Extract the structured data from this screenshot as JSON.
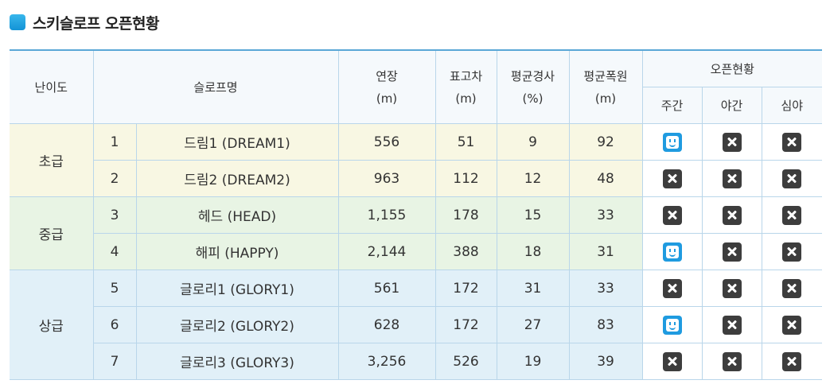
{
  "section_title": "스키슬로프 오픈현황",
  "colors": {
    "accent": "#1393d6",
    "open_icon": "#1f9be0",
    "closed_icon": "#3d3d3d"
  },
  "headers": {
    "difficulty": "난이도",
    "slope_name": "슬로프명",
    "length": "연장",
    "length_unit": "(m)",
    "elevation": "표고차",
    "elevation_unit": "(m)",
    "avg_slope": "평균경사",
    "avg_slope_unit": "(%)",
    "avg_width": "평균폭원",
    "avg_width_unit": "(m)",
    "open_status": "오픈현황",
    "day": "주간",
    "night": "야간",
    "late_night": "심야"
  },
  "groups": [
    {
      "level": "초급",
      "rows": [
        {
          "no": "1",
          "name": "드림1 (DREAM1)",
          "length": "556",
          "elevation": "51",
          "avg_slope": "9",
          "avg_width": "92",
          "day": "open-icon",
          "night": "closed-icon",
          "late_night": "closed-icon"
        },
        {
          "no": "2",
          "name": "드림2 (DREAM2)",
          "length": "963",
          "elevation": "112",
          "avg_slope": "12",
          "avg_width": "48",
          "day": "closed-icon",
          "night": "closed-icon",
          "late_night": "closed-icon"
        }
      ]
    },
    {
      "level": "중급",
      "rows": [
        {
          "no": "3",
          "name": "헤드 (HEAD)",
          "length": "1,155",
          "elevation": "178",
          "avg_slope": "15",
          "avg_width": "33",
          "day": "closed-icon",
          "night": "closed-icon",
          "late_night": "closed-icon"
        },
        {
          "no": "4",
          "name": "해피 (HAPPY)",
          "length": "2,144",
          "elevation": "388",
          "avg_slope": "18",
          "avg_width": "31",
          "day": "open-icon",
          "night": "closed-icon",
          "late_night": "closed-icon"
        }
      ]
    },
    {
      "level": "상급",
      "rows": [
        {
          "no": "5",
          "name": "글로리1 (GLORY1)",
          "length": "561",
          "elevation": "172",
          "avg_slope": "31",
          "avg_width": "33",
          "day": "closed-icon",
          "night": "closed-icon",
          "late_night": "closed-icon"
        },
        {
          "no": "6",
          "name": "글로리2 (GLORY2)",
          "length": "628",
          "elevation": "172",
          "avg_slope": "27",
          "avg_width": "83",
          "day": "open-icon",
          "night": "closed-icon",
          "late_night": "closed-icon"
        },
        {
          "no": "7",
          "name": "글로리3 (GLORY3)",
          "length": "3,256",
          "elevation": "526",
          "avg_slope": "19",
          "avg_width": "39",
          "day": "closed-icon",
          "night": "closed-icon",
          "late_night": "closed-icon"
        }
      ]
    }
  ]
}
